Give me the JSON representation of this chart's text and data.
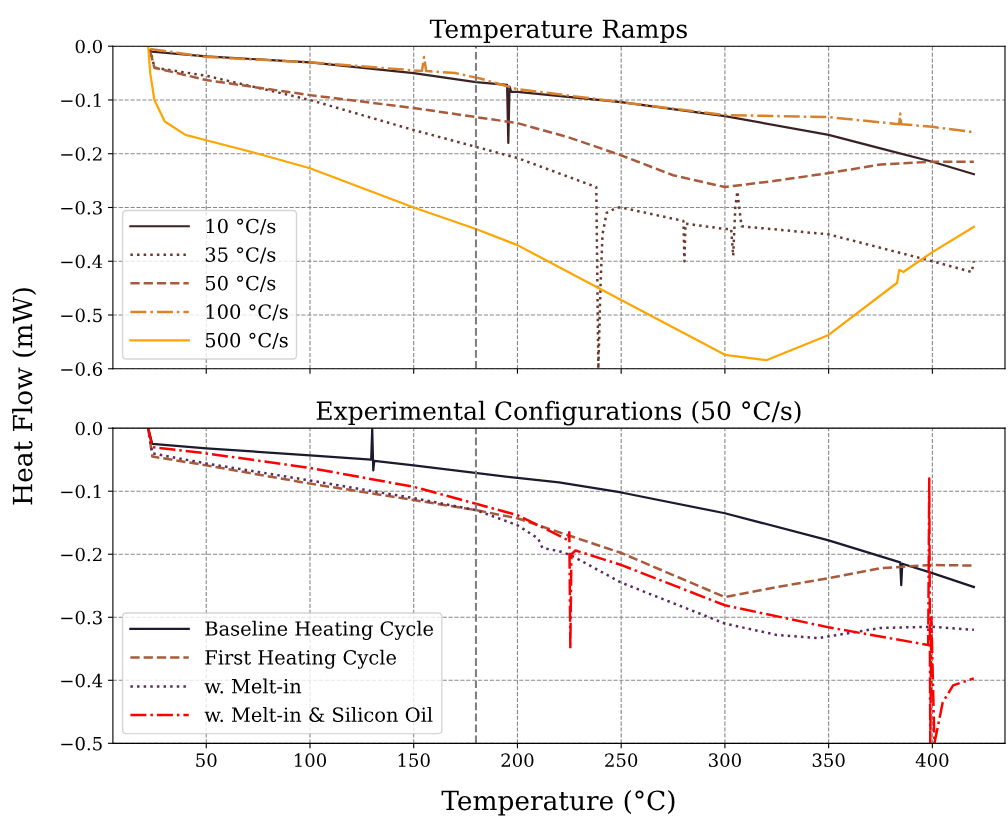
{
  "chart_data": [
    {
      "type": "line",
      "title": "Temperature Ramps",
      "ylabel": "Heat Flow (mW)",
      "xlim": [
        5,
        435
      ],
      "ylim": [
        -0.6,
        0
      ],
      "xticks": [
        50,
        100,
        150,
        200,
        250,
        300,
        350,
        400
      ],
      "yticks": [
        {
          "value": 0,
          "label": "0.0"
        },
        {
          "value": -0.1,
          "label": "−0.1"
        },
        {
          "value": -0.2,
          "label": "−0.2"
        },
        {
          "value": -0.3,
          "label": "−0.3"
        },
        {
          "value": -0.4,
          "label": "−0.4"
        },
        {
          "value": -0.5,
          "label": "−0.5"
        },
        {
          "value": -0.6,
          "label": "−0.6"
        }
      ],
      "tick_labels": "y",
      "grid": true,
      "legend": "lower left",
      "marker": "none",
      "ref_lines": [
        {
          "axis": "x",
          "value": 180,
          "color": "#808080",
          "line_style": "dashed"
        }
      ],
      "series": [
        {
          "name": "10 °C/s",
          "color": "#3a2224",
          "line_style": "solid",
          "x": [
            23,
            50,
            100,
            150,
            180,
            195,
            195.6,
            196.2,
            197,
            200,
            250,
            300,
            350,
            375,
            400,
            420
          ],
          "values": [
            -0.01,
            -0.019,
            -0.03,
            -0.05,
            -0.067,
            -0.072,
            -0.18,
            -0.075,
            -0.085,
            -0.085,
            -0.104,
            -0.13,
            -0.165,
            -0.19,
            -0.215,
            -0.238
          ]
        },
        {
          "name": "35 °C/s",
          "color": "#6b3a2e",
          "line_style": "dotted",
          "x": [
            23,
            25,
            50,
            100,
            150,
            200,
            238,
            239,
            240,
            241,
            243,
            248,
            250,
            280,
            280.5,
            281,
            300,
            303,
            304,
            305,
            306,
            308,
            350,
            380,
            400,
            419,
            420
          ],
          "values": [
            -0.005,
            -0.04,
            -0.055,
            -0.1,
            -0.156,
            -0.208,
            -0.262,
            -0.6,
            -0.45,
            -0.35,
            -0.31,
            -0.3,
            -0.3,
            -0.325,
            -0.4,
            -0.33,
            -0.34,
            -0.34,
            -0.39,
            -0.3,
            -0.27,
            -0.335,
            -0.35,
            -0.38,
            -0.4,
            -0.42,
            -0.4
          ]
        },
        {
          "name": "50 °C/s",
          "color": "#a85a3a",
          "line_style": "dashed",
          "x": [
            23,
            25,
            50,
            100,
            150,
            200,
            225,
            250,
            275,
            300,
            325,
            350,
            375,
            400,
            420
          ],
          "values": [
            -0.01,
            -0.04,
            -0.063,
            -0.091,
            -0.115,
            -0.143,
            -0.17,
            -0.203,
            -0.24,
            -0.262,
            -0.25,
            -0.236,
            -0.22,
            -0.215,
            -0.215
          ]
        },
        {
          "name": "100 °C/s",
          "color": "#d9822b",
          "line_style": "dashdot",
          "x": [
            23,
            50,
            100,
            150,
            154,
            155,
            156,
            170,
            182,
            200,
            250,
            300,
            350,
            384,
            384.5,
            385,
            400,
            420
          ],
          "values": [
            -0.005,
            -0.02,
            -0.03,
            -0.045,
            -0.046,
            -0.02,
            -0.046,
            -0.05,
            -0.06,
            -0.08,
            -0.104,
            -0.128,
            -0.132,
            -0.145,
            -0.125,
            -0.145,
            -0.15,
            -0.16
          ]
        },
        {
          "name": "500 °C/s",
          "color": "#ffa500",
          "line_style": "solid",
          "x": [
            22,
            23,
            25,
            30,
            40,
            50,
            75,
            100,
            150,
            180,
            200,
            250,
            300,
            320,
            350,
            383,
            384,
            386,
            400,
            420
          ],
          "values": [
            0,
            -0.05,
            -0.1,
            -0.14,
            -0.165,
            -0.175,
            -0.2,
            -0.227,
            -0.3,
            -0.34,
            -0.37,
            -0.472,
            -0.574,
            -0.584,
            -0.537,
            -0.44,
            -0.416,
            -0.42,
            -0.383,
            -0.336
          ]
        }
      ]
    },
    {
      "type": "line",
      "title": "Experimental Configurations (50 °C/s)",
      "xlabel": "Temperature (°C)",
      "xlim": [
        5,
        435
      ],
      "ylim": [
        -0.5,
        0
      ],
      "xticks": [
        50,
        100,
        150,
        200,
        250,
        300,
        350,
        400
      ],
      "yticks": [
        {
          "value": 0,
          "label": "0.0"
        },
        {
          "value": -0.1,
          "label": "−0.1"
        },
        {
          "value": -0.2,
          "label": "−0.2"
        },
        {
          "value": -0.3,
          "label": "−0.3"
        },
        {
          "value": -0.4,
          "label": "−0.4"
        },
        {
          "value": -0.5,
          "label": "−0.5"
        }
      ],
      "grid": true,
      "legend": "lower left",
      "marker": "none",
      "ref_lines": [
        {
          "axis": "x",
          "value": 180,
          "color": "#808080",
          "line_style": "dashed"
        }
      ],
      "series": [
        {
          "name": "Baseline Heating Cycle",
          "color": "#1c1a2e",
          "line_style": "solid",
          "x": [
            22,
            24,
            50,
            100,
            129.5,
            130,
            130.5,
            131,
            150,
            200,
            220,
            250,
            300,
            350,
            384.5,
            385,
            385.5,
            400,
            420
          ],
          "values": [
            0,
            -0.025,
            -0.032,
            -0.043,
            -0.05,
            0,
            -0.067,
            -0.052,
            -0.059,
            -0.079,
            -0.086,
            -0.102,
            -0.135,
            -0.178,
            -0.213,
            -0.249,
            -0.215,
            -0.23,
            -0.252
          ]
        },
        {
          "name": "First Heating Cycle",
          "color": "#a85a3a",
          "line_style": "dashed",
          "x": [
            22,
            24,
            50,
            100,
            150,
            180,
            200,
            250,
            275,
            300,
            325,
            350,
            375,
            400,
            420
          ],
          "values": [
            0,
            -0.045,
            -0.059,
            -0.088,
            -0.114,
            -0.13,
            -0.143,
            -0.198,
            -0.233,
            -0.268,
            -0.252,
            -0.238,
            -0.222,
            -0.217,
            -0.218
          ]
        },
        {
          "name": "w. Melt-in",
          "color": "#5c2a60",
          "line_style": "dotted",
          "x": [
            22,
            24,
            50,
            100,
            150,
            180,
            200,
            210,
            212,
            220,
            226,
            250,
            300,
            325,
            345,
            375,
            400,
            420
          ],
          "values": [
            0,
            -0.04,
            -0.056,
            -0.083,
            -0.111,
            -0.13,
            -0.154,
            -0.175,
            -0.19,
            -0.195,
            -0.202,
            -0.245,
            -0.31,
            -0.328,
            -0.333,
            -0.317,
            -0.315,
            -0.32
          ]
        },
        {
          "name": "w. Melt-in & Silicon Oil",
          "color": "#ff0000",
          "line_style": "dashdot",
          "x": [
            22,
            24,
            50,
            100,
            150,
            180,
            200,
            215,
            224.5,
            225,
            225.5,
            226,
            228,
            250,
            300,
            350,
            398,
            398.5,
            399,
            399.5,
            401,
            405,
            410,
            420
          ],
          "values": [
            0,
            -0.03,
            -0.04,
            -0.063,
            -0.093,
            -0.12,
            -0.138,
            -0.162,
            -0.178,
            -0.165,
            -0.35,
            -0.2,
            -0.194,
            -0.217,
            -0.281,
            -0.316,
            -0.344,
            -0.08,
            -0.5,
            -0.3,
            -0.5,
            -0.435,
            -0.408,
            -0.397
          ]
        }
      ]
    }
  ]
}
